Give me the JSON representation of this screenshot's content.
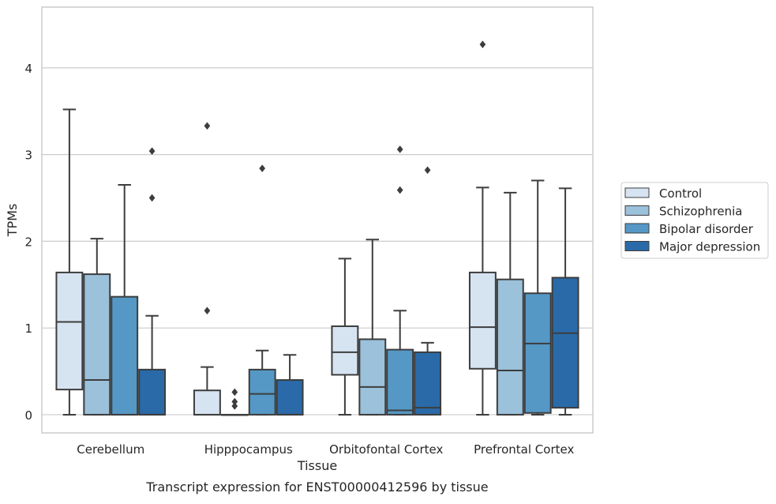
{
  "chart_data": {
    "type": "box",
    "xlabel": "Tissue",
    "ylabel": "TPMs",
    "caption": "Transcript expression for ENST00000412596 by tissue",
    "ylim": [
      -0.21,
      4.7
    ],
    "yticks": [
      0,
      1,
      2,
      3,
      4
    ],
    "grid": "horizontal",
    "legend_position": "right",
    "categories": [
      "Cerebellum",
      "Hipppocampus",
      "Orbitofontal Cortex",
      "Prefrontal Cortex"
    ],
    "series": [
      {
        "name": "Control",
        "color": "#d6e4f2",
        "boxes": [
          {
            "whislo": 0.0,
            "q1": 0.29,
            "med": 1.07,
            "q3": 1.64,
            "whishi": 3.52,
            "fliers": []
          },
          {
            "whislo": 0.0,
            "q1": 0.0,
            "med": 0.0,
            "q3": 0.28,
            "whishi": 0.55,
            "fliers": [
              1.2,
              3.33
            ]
          },
          {
            "whislo": 0.0,
            "q1": 0.46,
            "med": 0.72,
            "q3": 1.02,
            "whishi": 1.8,
            "fliers": []
          },
          {
            "whislo": 0.0,
            "q1": 0.53,
            "med": 1.01,
            "q3": 1.64,
            "whishi": 2.62,
            "fliers": [
              4.27
            ]
          }
        ]
      },
      {
        "name": "Schizophrenia",
        "color": "#9bc1db",
        "boxes": [
          {
            "whislo": 0.0,
            "q1": 0.0,
            "med": 0.4,
            "q3": 1.62,
            "whishi": 2.03,
            "fliers": []
          },
          {
            "whislo": 0.0,
            "q1": 0.0,
            "med": 0.0,
            "q3": 0.0,
            "whishi": 0.0,
            "fliers": [
              0.1,
              0.15,
              0.26
            ]
          },
          {
            "whislo": 0.0,
            "q1": 0.0,
            "med": 0.32,
            "q3": 0.87,
            "whishi": 2.02,
            "fliers": []
          },
          {
            "whislo": 0.0,
            "q1": 0.0,
            "med": 0.51,
            "q3": 1.56,
            "whishi": 2.56,
            "fliers": []
          }
        ]
      },
      {
        "name": "Bipolar disorder",
        "color": "#5598c6",
        "boxes": [
          {
            "whislo": 0.0,
            "q1": 0.0,
            "med": 0.0,
            "q3": 1.36,
            "whishi": 2.65,
            "fliers": []
          },
          {
            "whislo": 0.0,
            "q1": 0.0,
            "med": 0.24,
            "q3": 0.52,
            "whishi": 0.74,
            "fliers": [
              2.84
            ]
          },
          {
            "whislo": 0.0,
            "q1": 0.0,
            "med": 0.05,
            "q3": 0.75,
            "whishi": 1.2,
            "fliers": [
              2.59,
              3.06
            ]
          },
          {
            "whislo": 0.0,
            "q1": 0.02,
            "med": 0.82,
            "q3": 1.4,
            "whishi": 2.7,
            "fliers": []
          }
        ]
      },
      {
        "name": "Major depression",
        "color": "#2a6aa8",
        "boxes": [
          {
            "whislo": 0.0,
            "q1": 0.0,
            "med": 0.0,
            "q3": 0.52,
            "whishi": 1.14,
            "fliers": [
              2.5,
              3.04
            ]
          },
          {
            "whislo": 0.0,
            "q1": 0.0,
            "med": 0.0,
            "q3": 0.4,
            "whishi": 0.69,
            "fliers": []
          },
          {
            "whislo": 0.0,
            "q1": 0.0,
            "med": 0.08,
            "q3": 0.72,
            "whishi": 0.83,
            "fliers": [
              2.82
            ]
          },
          {
            "whislo": 0.0,
            "q1": 0.08,
            "med": 0.94,
            "q3": 1.58,
            "whishi": 2.61,
            "fliers": []
          }
        ]
      }
    ]
  }
}
